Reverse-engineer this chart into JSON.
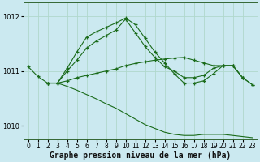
{
  "background_color": "#cbe9f0",
  "grid_color": "#b0d8cc",
  "line_color": "#1a6b1a",
  "xlabel": "Graphe pression niveau de la mer (hPa)",
  "xlabel_fontsize": 7,
  "ylim": [
    1009.75,
    1012.25
  ],
  "xlim": [
    -0.5,
    23.5
  ],
  "yticks": [
    1010,
    1011,
    1012
  ],
  "xticks": [
    0,
    1,
    2,
    3,
    4,
    5,
    6,
    7,
    8,
    9,
    10,
    11,
    12,
    13,
    14,
    15,
    16,
    17,
    18,
    19,
    20,
    21,
    22,
    23
  ],
  "lines": [
    {
      "x": [
        2,
        3,
        4,
        5,
        6,
        7,
        8,
        9,
        10,
        11,
        12,
        13,
        14,
        15,
        16,
        17,
        18,
        19,
        20,
        21,
        22
      ],
      "y": [
        1010.78,
        1010.78,
        1011.05,
        1011.35,
        1011.62,
        1011.72,
        1011.8,
        1011.88,
        1011.97,
        1011.85,
        1011.6,
        1011.35,
        1011.15,
        1010.95,
        1010.78,
        1010.78,
        1010.82,
        1010.95,
        1011.1,
        1011.1,
        1010.88
      ],
      "marker": true
    },
    {
      "x": [
        0,
        1,
        2,
        3,
        4,
        5,
        6,
        7,
        8,
        9,
        10,
        11,
        12,
        13,
        14,
        15,
        16,
        17,
        18,
        19,
        20,
        21,
        22,
        23
      ],
      "y": [
        1011.08,
        1010.9,
        1010.78,
        1010.78,
        1011.0,
        1011.2,
        1011.42,
        1011.55,
        1011.65,
        1011.75,
        1011.95,
        1011.7,
        1011.45,
        1011.25,
        1011.08,
        1011.0,
        1010.88,
        1010.88,
        1010.92,
        1011.05,
        1011.1,
        1011.1,
        1010.88,
        1010.75
      ],
      "marker": true
    },
    {
      "x": [
        2,
        3,
        4,
        5,
        6,
        7,
        8,
        9,
        10,
        11,
        12,
        13,
        14,
        15,
        16,
        17,
        18,
        19,
        20,
        21,
        22,
        23
      ],
      "y": [
        1010.78,
        1010.78,
        1010.82,
        1010.88,
        1010.92,
        1010.96,
        1011.0,
        1011.04,
        1011.1,
        1011.14,
        1011.17,
        1011.2,
        1011.22,
        1011.24,
        1011.25,
        1011.2,
        1011.15,
        1011.1,
        1011.1,
        1011.1,
        1010.88,
        1010.75
      ],
      "marker": true
    },
    {
      "x": [
        2,
        3,
        4,
        5,
        6,
        7,
        8,
        9,
        10,
        11,
        12,
        13,
        14,
        15,
        16,
        17,
        18,
        19,
        20,
        21,
        22,
        23
      ],
      "y": [
        1010.78,
        1010.78,
        1010.72,
        1010.65,
        1010.57,
        1010.49,
        1010.4,
        1010.32,
        1010.22,
        1010.12,
        1010.02,
        1009.95,
        1009.88,
        1009.84,
        1009.82,
        1009.82,
        1009.84,
        1009.84,
        1009.84,
        1009.82,
        1009.8,
        1009.78
      ],
      "marker": false
    }
  ]
}
